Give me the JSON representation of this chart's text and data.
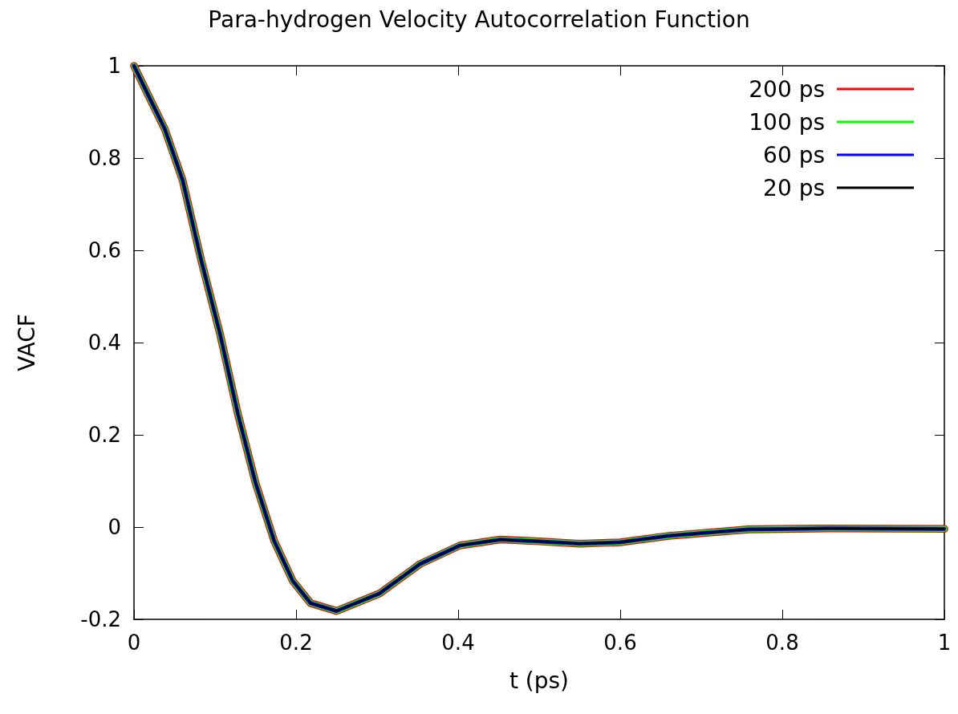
{
  "chart_data": {
    "type": "line",
    "title": "Para-hydrogen Velocity Autocorrelation Function",
    "xlabel": "t (ps)",
    "ylabel": "VACF",
    "x": [
      0,
      0.016,
      0.038,
      0.06,
      0.083,
      0.106,
      0.128,
      0.15,
      0.173,
      0.196,
      0.218,
      0.25,
      0.303,
      0.353,
      0.402,
      0.452,
      0.5,
      0.55,
      0.6,
      0.66,
      0.758,
      0.857,
      1
    ],
    "series": [
      {
        "name": "200 ps",
        "color": "#ff0000",
        "values": [
          1,
          0.942,
          0.863,
          0.752,
          0.578,
          0.42,
          0.247,
          0.096,
          -0.03,
          -0.117,
          -0.165,
          -0.182,
          -0.144,
          -0.08,
          -0.04,
          -0.027,
          -0.031,
          -0.036,
          -0.033,
          -0.019,
          -0.005,
          -0.003,
          -0.004
        ]
      },
      {
        "name": "100 ps",
        "color": "#00ff00",
        "values": [
          1,
          0.942,
          0.863,
          0.752,
          0.578,
          0.42,
          0.247,
          0.096,
          -0.03,
          -0.117,
          -0.165,
          -0.182,
          -0.144,
          -0.08,
          -0.04,
          -0.027,
          -0.031,
          -0.036,
          -0.033,
          -0.019,
          -0.005,
          -0.003,
          -0.004
        ]
      },
      {
        "name": "60 ps",
        "color": "#0000ff",
        "values": [
          1,
          0.942,
          0.863,
          0.752,
          0.578,
          0.42,
          0.247,
          0.096,
          -0.03,
          -0.117,
          -0.165,
          -0.182,
          -0.144,
          -0.08,
          -0.04,
          -0.027,
          -0.031,
          -0.036,
          -0.033,
          -0.019,
          -0.005,
          -0.003,
          -0.004
        ]
      },
      {
        "name": "20 ps",
        "color": "#000000",
        "values": [
          1,
          0.942,
          0.863,
          0.752,
          0.578,
          0.42,
          0.247,
          0.096,
          -0.03,
          -0.117,
          -0.165,
          -0.182,
          -0.144,
          -0.08,
          -0.04,
          -0.027,
          -0.031,
          -0.036,
          -0.033,
          -0.019,
          -0.005,
          -0.003,
          -0.004
        ]
      }
    ],
    "xlim": [
      0,
      1
    ],
    "xticks": [
      0,
      0.2,
      0.4,
      0.6,
      0.8,
      1
    ],
    "ylim": [
      -0.2,
      1
    ],
    "yticks": [
      -0.2,
      0,
      0.2,
      0.4,
      0.6,
      0.8,
      1
    ],
    "grid": false,
    "legend": "top right",
    "marker": "none",
    "line_style": "solid"
  }
}
